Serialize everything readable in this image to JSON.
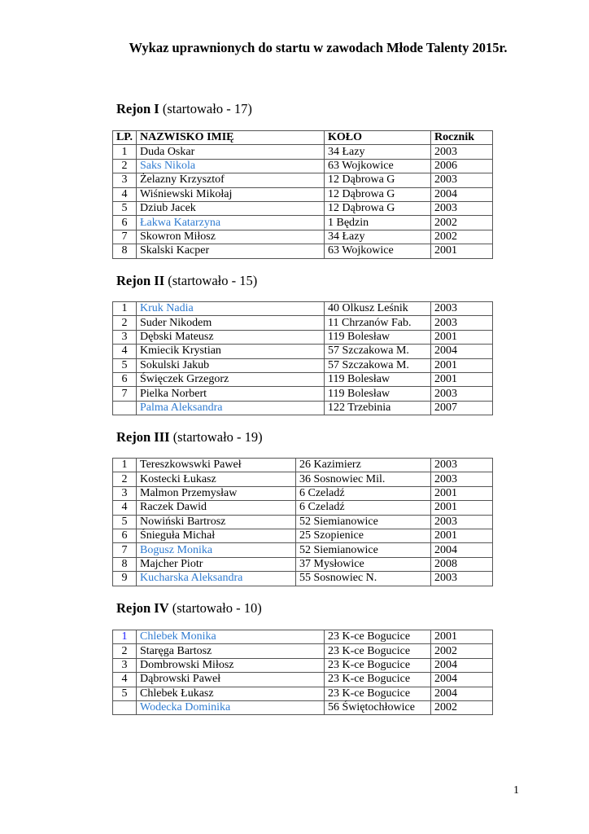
{
  "title": "Wykaz uprawnionych do startu w zawodach Młode Talenty 2015r.",
  "header_row": {
    "lp": "LP.",
    "name": "NAZWISKO IMIĘ",
    "club": "KOŁO",
    "year": "Rocznik"
  },
  "highlight_color": "#2f7bd0",
  "sections": [
    {
      "label": "Rejon I",
      "note": " (startowało - 17)",
      "rows": [
        {
          "lp": "1",
          "name": "Duda Oskar",
          "club": "34 Łazy",
          "year": "2003"
        },
        {
          "lp": "2",
          "name": "Saks Nikola",
          "club": "63 Wojkowice",
          "year": "2006",
          "highlight": true
        },
        {
          "lp": "3",
          "name": "Żelazny Krzysztof",
          "club": "12 Dąbrowa G",
          "year": "2003"
        },
        {
          "lp": "4",
          "name": "Wiśniewski Mikołaj",
          "club": "12 Dąbrowa G",
          "year": "2004"
        },
        {
          "lp": "5",
          "name": "Dziub Jacek",
          "club": "12 Dąbrowa G",
          "year": "2003"
        },
        {
          "lp": "6",
          "name": "Łakwa Katarzyna",
          "club": "1 Będzin",
          "year": "2002",
          "highlight": true
        },
        {
          "lp": "7",
          "name": "Skowron Miłosz",
          "club": "34 Łazy",
          "year": "2002"
        },
        {
          "lp": "8",
          "name": "Skalski Kacper",
          "club": "63 Wojkowice",
          "year": "2001"
        }
      ]
    },
    {
      "label": "Rejon II",
      "note": " (startowało - 15)",
      "rows": [
        {
          "lp": "1",
          "name": "Kruk Nadia",
          "club": "40 Olkusz Leśnik",
          "year": "2003",
          "highlight": true
        },
        {
          "lp": "2",
          "name": "Suder Nikodem",
          "club": "11 Chrzanów Fab.",
          "year": "2003"
        },
        {
          "lp": "3",
          "name": "Dębski Mateusz",
          "club": "119 Bolesław",
          "year": "2001"
        },
        {
          "lp": "4",
          "name": "Kmiecik Krystian",
          "club": "57 Szczakowa M.",
          "year": "2004"
        },
        {
          "lp": "5",
          "name": "Sokulski Jakub",
          "club": "57 Szczakowa M.",
          "year": "2001"
        },
        {
          "lp": "6",
          "name": "Święczek Grzegorz",
          "club": "119 Bolesław",
          "year": "2001"
        },
        {
          "lp": "7",
          "name": "Pielka Norbert",
          "club": "119 Bolesław",
          "year": "2003"
        },
        {
          "lp": "",
          "name": "Palma Aleksandra",
          "club": "122 Trzebinia",
          "year": "2007",
          "highlight": true
        }
      ]
    },
    {
      "label": "Rejon III",
      "note": " (startowało - 19)",
      "rows": [
        {
          "lp": "1",
          "name": "Tereszkowswki Paweł",
          "club": "26 Kazimierz",
          "year": "2003"
        },
        {
          "lp": "2",
          "name": "Kostecki Łukasz",
          "club": "36 Sosnowiec Mil.",
          "year": "2003"
        },
        {
          "lp": "3",
          "name": "Malmon Przemysław",
          "club": "6 Czeladź",
          "year": "2001"
        },
        {
          "lp": "4",
          "name": "Raczek Dawid",
          "club": "6 Czeladź",
          "year": "2001"
        },
        {
          "lp": "5",
          "name": "Nowiński Bartrosz",
          "club": "52 Siemianowice",
          "year": "2003"
        },
        {
          "lp": "6",
          "name": "Śnieguła Michał",
          "club": "25 Szopienice",
          "year": "2001"
        },
        {
          "lp": "7",
          "name": "Bogusz Monika",
          "club": "52 Siemianowice",
          "year": "2004",
          "highlight": true
        },
        {
          "lp": "8",
          "name": "Majcher Piotr",
          "club": "37 Mysłowice",
          "year": "2008"
        },
        {
          "lp": "9",
          "name": "Kucharska Aleksandra",
          "club": "55 Sosnowiec N.",
          "year": "2003",
          "highlight": true
        }
      ]
    },
    {
      "label": "Rejon IV",
      "note": " (startowało - 10)",
      "rows": [
        {
          "lp": "1",
          "name": "Chlebek Monika",
          "club": "23 K-ce Bogucice",
          "year": "2001",
          "highlight": true,
          "lp_highlight": true
        },
        {
          "lp": "2",
          "name": "Staręga Bartosz",
          "club": "23 K-ce Bogucice",
          "year": "2002"
        },
        {
          "lp": "3",
          "name": "Dombrowski Miłosz",
          "club": "23 K-ce Bogucice",
          "year": "2004"
        },
        {
          "lp": "4",
          "name": "Dąbrowski Paweł",
          "club": "23 K-ce Bogucice",
          "year": "2004"
        },
        {
          "lp": "5",
          "name": "Chlebek Łukasz",
          "club": "23 K-ce Bogucice",
          "year": "2004"
        },
        {
          "lp": "",
          "name": "Wodecka Dominika",
          "club": "56 Świętochłowice",
          "year": "2002",
          "highlight": true
        }
      ]
    }
  ],
  "page_number": "1"
}
